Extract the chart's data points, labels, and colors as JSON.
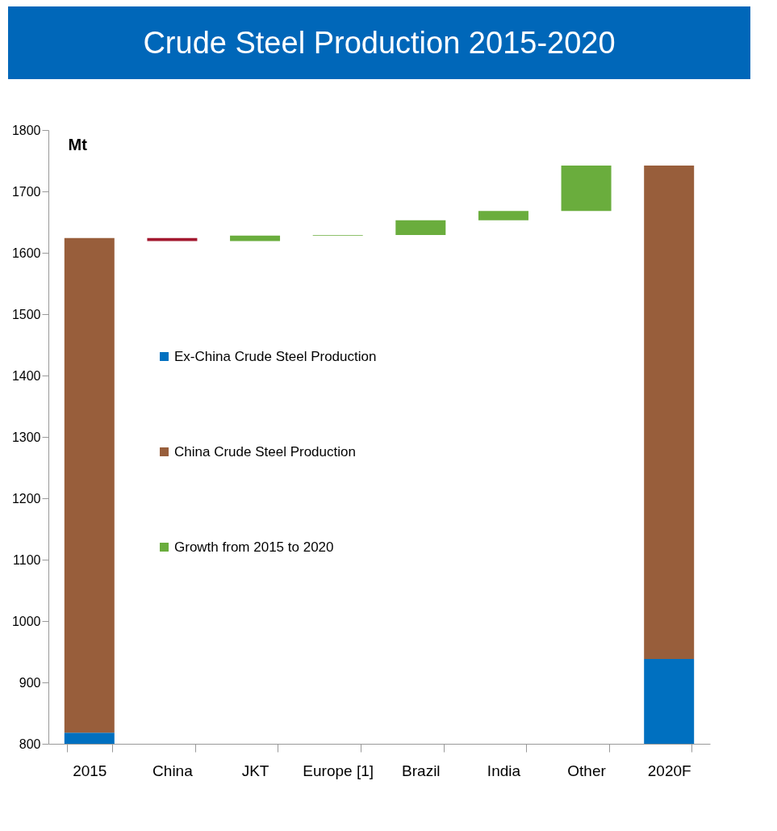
{
  "chart_data": {
    "type": "bar",
    "title": "Crude Steel Production 2015-2020",
    "ylabel": "Mt",
    "categories": [
      "2015",
      "China",
      "JKT",
      "Europe [1]",
      "Brazil",
      "India",
      "Other",
      "2020F"
    ],
    "stacked": true,
    "series": [
      {
        "name": "Ex-China Crude Steel Production",
        "color": "#0070c0",
        "values": [
          818,
          null,
          null,
          null,
          null,
          null,
          null,
          938
        ]
      },
      {
        "name": "China Crude Steel Production",
        "color": "#985e3b",
        "values": [
          806,
          null,
          null,
          null,
          null,
          null,
          null,
          804
        ]
      },
      {
        "name": "Growth from 2015 to 2020",
        "color": "#6aad3d",
        "colors": [
          "#6aad3d",
          "#a3182f",
          "#6aad3d",
          "#6aad3d",
          "#6aad3d",
          "#6aad3d",
          "#6aad3d",
          "#6aad3d"
        ],
        "values": [
          null,
          -5,
          9,
          1,
          24,
          15,
          74,
          null
        ],
        "base": [
          null,
          1624,
          1619,
          1628,
          1629,
          1653,
          1668,
          null
        ]
      }
    ],
    "ylim": [
      800,
      1800
    ],
    "yticks": [
      800,
      900,
      1000,
      1100,
      1200,
      1300,
      1400,
      1500,
      1600,
      1700,
      1800
    ],
    "grid": false,
    "legend": "left"
  }
}
